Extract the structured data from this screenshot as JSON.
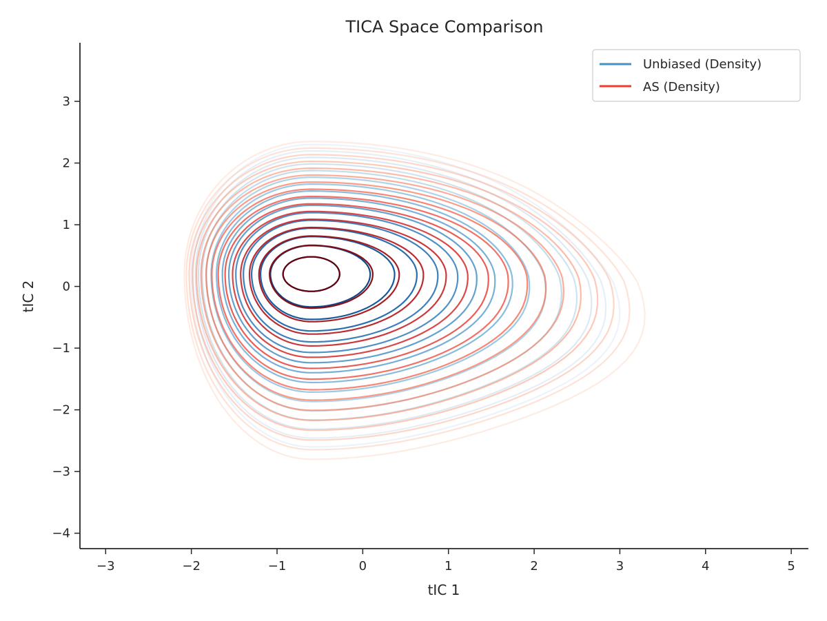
{
  "chart_data": {
    "type": "contour",
    "title": "TICA Space Comparison",
    "xlabel": "tIC 1",
    "ylabel": "tIC 2",
    "xlim": [
      -3.3,
      5.2
    ],
    "ylim": [
      -4.25,
      3.95
    ],
    "xticks": [
      -3,
      -2,
      -1,
      0,
      1,
      2,
      3,
      4,
      5
    ],
    "yticks": [
      -4,
      -3,
      -2,
      -1,
      0,
      1,
      2,
      3
    ],
    "xtick_labels": [
      "−3",
      "−2",
      "−1",
      "0",
      "1",
      "2",
      "3",
      "4",
      "5"
    ],
    "ytick_labels": [
      "−4",
      "−3",
      "−2",
      "−1",
      "0",
      "1",
      "2",
      "3"
    ],
    "legend_position": "upper right",
    "series": [
      {
        "name": "Unbiased (Density)",
        "color": "#4292c6",
        "colormap": "Blues",
        "levels": 10,
        "mode": {
          "x": -0.6,
          "y": 0.2
        },
        "lobe": {
          "x": 2.3,
          "y": -0.4
        },
        "extent": {
          "left": -2.4,
          "right": 3.3,
          "top": 2.3,
          "bottom": -2.6
        }
      },
      {
        "name": "AS (Density)",
        "color": "#ef3b2c",
        "colormap": "Reds",
        "levels": 10,
        "mode": {
          "x": -0.6,
          "y": 0.2
        },
        "lobe": {
          "x": 2.6,
          "y": -0.4
        },
        "extent": {
          "left": -2.5,
          "right": 3.6,
          "top": 2.35,
          "bottom": -2.8
        }
      }
    ]
  }
}
